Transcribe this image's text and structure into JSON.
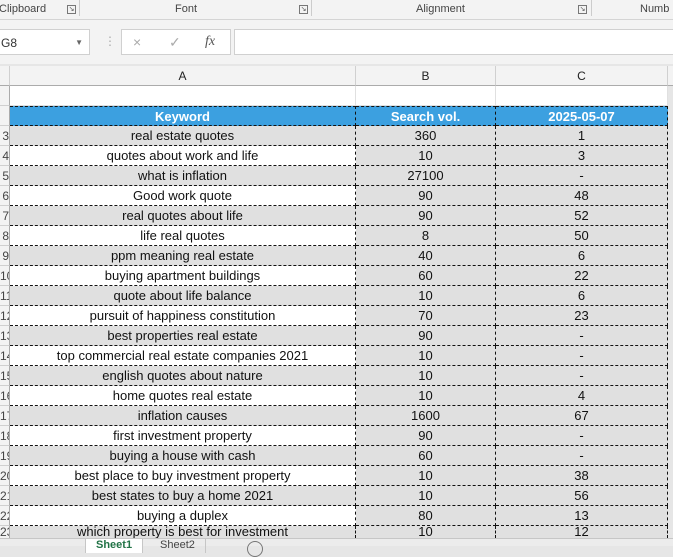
{
  "ribbon": {
    "groups": [
      "Clipboard",
      "Font",
      "Alignment",
      "Numb"
    ]
  },
  "formula_bar": {
    "name_box": "G8",
    "cancel_icon": "×",
    "enter_icon": "✓",
    "fx_label": "fx",
    "value": ""
  },
  "columns": [
    "A",
    "B",
    "C"
  ],
  "header": {
    "keyword": "Keyword",
    "volume": "Search vol.",
    "date": "2025-05-07"
  },
  "colors": {
    "header_bg": "#3ca0e0",
    "band": "#e0e0e0",
    "active_tab": "#217346"
  },
  "rows": [
    {
      "n": "3",
      "k": "real estate quotes",
      "v": "360",
      "r": "1"
    },
    {
      "n": "4",
      "k": "quotes about work and life",
      "v": "10",
      "r": "3"
    },
    {
      "n": "5",
      "k": "what is inflation",
      "v": "27100",
      "r": "-"
    },
    {
      "n": "6",
      "k": "Good work quote",
      "v": "90",
      "r": "48"
    },
    {
      "n": "7",
      "k": "real quotes about life",
      "v": "90",
      "r": "52"
    },
    {
      "n": "8",
      "k": "life real quotes",
      "v": "8",
      "r": "50"
    },
    {
      "n": "9",
      "k": "ppm meaning real estate",
      "v": "40",
      "r": "6"
    },
    {
      "n": "10",
      "k": "buying apartment buildings",
      "v": "60",
      "r": "22"
    },
    {
      "n": "11",
      "k": "quote about life balance",
      "v": "10",
      "r": "6"
    },
    {
      "n": "12",
      "k": "pursuit of happiness constitution",
      "v": "70",
      "r": "23"
    },
    {
      "n": "13",
      "k": "best properties real estate",
      "v": "90",
      "r": "-"
    },
    {
      "n": "14",
      "k": "top commercial real estate companies 2021",
      "v": "10",
      "r": "-"
    },
    {
      "n": "15",
      "k": "english quotes about nature",
      "v": "10",
      "r": "-"
    },
    {
      "n": "16",
      "k": "home quotes real estate",
      "v": "10",
      "r": "4"
    },
    {
      "n": "17",
      "k": "inflation causes",
      "v": "1600",
      "r": "67"
    },
    {
      "n": "18",
      "k": "first investment property",
      "v": "90",
      "r": "-"
    },
    {
      "n": "19",
      "k": "buying a house with cash",
      "v": "60",
      "r": "-"
    },
    {
      "n": "20",
      "k": "best place to buy investment property",
      "v": "10",
      "r": "38"
    },
    {
      "n": "21",
      "k": "best states to buy a home 2021",
      "v": "10",
      "r": "56"
    },
    {
      "n": "22",
      "k": "buying a duplex",
      "v": "80",
      "r": "13"
    },
    {
      "n": "23",
      "k": "which property is best for investment",
      "v": "10",
      "r": "12"
    }
  ],
  "sheet_tabs": [
    "Sheet1",
    "Sheet2"
  ]
}
